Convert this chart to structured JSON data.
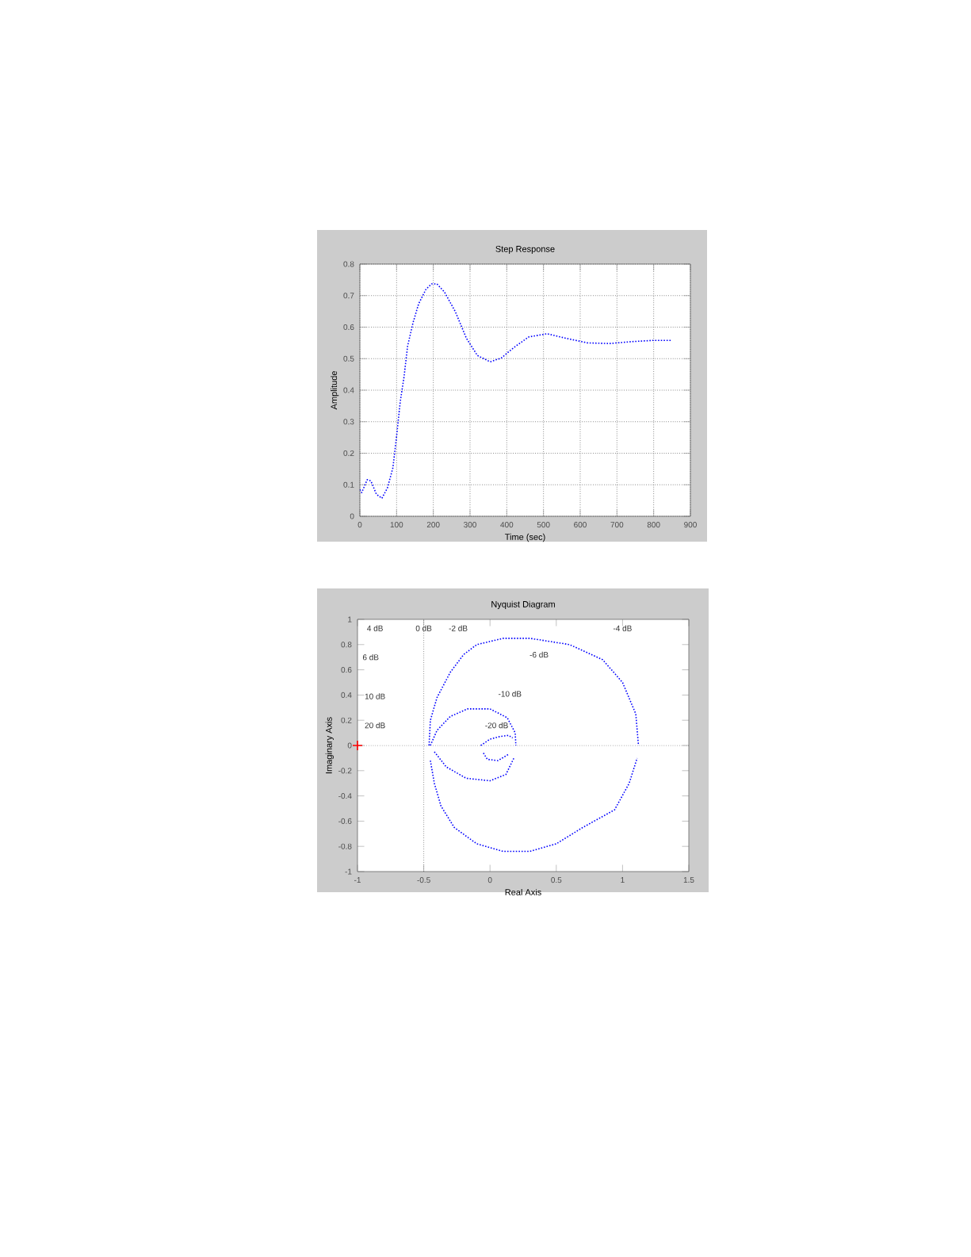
{
  "chart_data": [
    {
      "type": "line",
      "title": "Step Response",
      "xlabel": "Time (sec)",
      "ylabel": "Amplitude",
      "x": [
        0,
        5,
        20,
        30,
        45,
        60,
        75,
        90,
        100,
        110,
        120,
        130,
        145,
        160,
        180,
        195,
        210,
        230,
        260,
        290,
        320,
        355,
        385,
        420,
        460,
        510,
        560,
        620,
        680,
        740,
        800,
        850
      ],
      "values": [
        0.085,
        0.075,
        0.116,
        0.112,
        0.07,
        0.057,
        0.09,
        0.154,
        0.254,
        0.364,
        0.44,
        0.54,
        0.615,
        0.674,
        0.72,
        0.737,
        0.737,
        0.712,
        0.649,
        0.565,
        0.51,
        0.49,
        0.502,
        0.536,
        0.569,
        0.579,
        0.565,
        0.55,
        0.548,
        0.554,
        0.558,
        0.558
      ],
      "color": "#0000ff",
      "line_style": "dotted",
      "xlim": [
        0,
        900
      ],
      "ylim": [
        0,
        0.8
      ],
      "xticks": [
        0,
        100,
        200,
        300,
        400,
        500,
        600,
        700,
        800,
        900
      ],
      "yticks": [
        0,
        0.1,
        0.2,
        0.3,
        0.4,
        0.5,
        0.6,
        0.7,
        0.8
      ],
      "grid": true
    },
    {
      "type": "line",
      "title": "Nyquist Diagram",
      "xlabel": "Real Axis",
      "ylabel": "Imaginary Axis",
      "series": [
        {
          "type": "line",
          "color": "#0000ff",
          "x": [
            -0.46,
            -0.45,
            -0.4,
            -0.3,
            -0.2,
            -0.1,
            0.1,
            0.3,
            0.6,
            0.85,
            1.0,
            1.1,
            1.12
          ],
          "values": [
            0,
            0.2,
            0.38,
            0.58,
            0.72,
            0.8,
            0.85,
            0.85,
            0.8,
            0.68,
            0.5,
            0.25,
            0
          ]
        },
        {
          "type": "line",
          "color": "#0000ff",
          "x": [
            -0.45,
            -0.42,
            -0.37,
            -0.27,
            -0.1,
            0.1,
            0.3,
            0.5,
            0.7,
            0.94,
            1.05,
            1.11
          ],
          "values": [
            -0.12,
            -0.3,
            -0.48,
            -0.65,
            -0.78,
            -0.84,
            -0.84,
            -0.78,
            -0.65,
            -0.51,
            -0.3,
            -0.1
          ]
        },
        {
          "type": "line",
          "color": "#0000ff",
          "x": [
            -0.45,
            -0.4,
            -0.3,
            -0.17,
            0,
            0.13,
            0.19,
            0.195
          ],
          "values": [
            0,
            0.12,
            0.23,
            0.29,
            0.29,
            0.22,
            0.1,
            0
          ]
        },
        {
          "type": "line",
          "color": "#0000ff",
          "x": [
            -0.42,
            -0.33,
            -0.18,
            0,
            0.12,
            0.18
          ],
          "values": [
            -0.05,
            -0.17,
            -0.26,
            -0.28,
            -0.23,
            -0.1
          ]
        },
        {
          "type": "line",
          "color": "#0000ff",
          "x": [
            -0.07,
            0,
            0.07,
            0.14,
            0.17
          ],
          "values": [
            0,
            0.05,
            0.07,
            0.08,
            0.06
          ]
        },
        {
          "type": "line",
          "color": "#0000ff",
          "x": [
            -0.05,
            -0.02,
            0.06,
            0.14
          ],
          "values": [
            -0.06,
            -0.11,
            -0.12,
            -0.07
          ]
        },
        {
          "type": "scatter",
          "color": "#ff0000",
          "marker": "cross",
          "x": [
            -1
          ],
          "values": [
            0
          ]
        }
      ],
      "line_style": "dotted",
      "xlim": [
        -1,
        1.5
      ],
      "ylim": [
        -1,
        1
      ],
      "xticks": [
        -1,
        -0.5,
        0,
        0.5,
        1,
        1.5
      ],
      "yticks": [
        -1,
        -0.8,
        -0.6,
        -0.4,
        -0.2,
        0,
        0.2,
        0.4,
        0.6,
        0.8,
        1
      ],
      "ref_lines": [
        {
          "axis": "x",
          "value": -0.5,
          "color": "#555555",
          "line_style": "dotted"
        },
        {
          "axis": "y",
          "value": 0,
          "color": "#555555",
          "line_style": "dotted"
        }
      ],
      "annotations": [
        "4 dB",
        "0 dB",
        "-2 dB",
        "-4 dB",
        "6 dB",
        "-6 dB",
        "10 dB",
        "-10 dB",
        "20 dB",
        "-20 dB"
      ]
    }
  ]
}
